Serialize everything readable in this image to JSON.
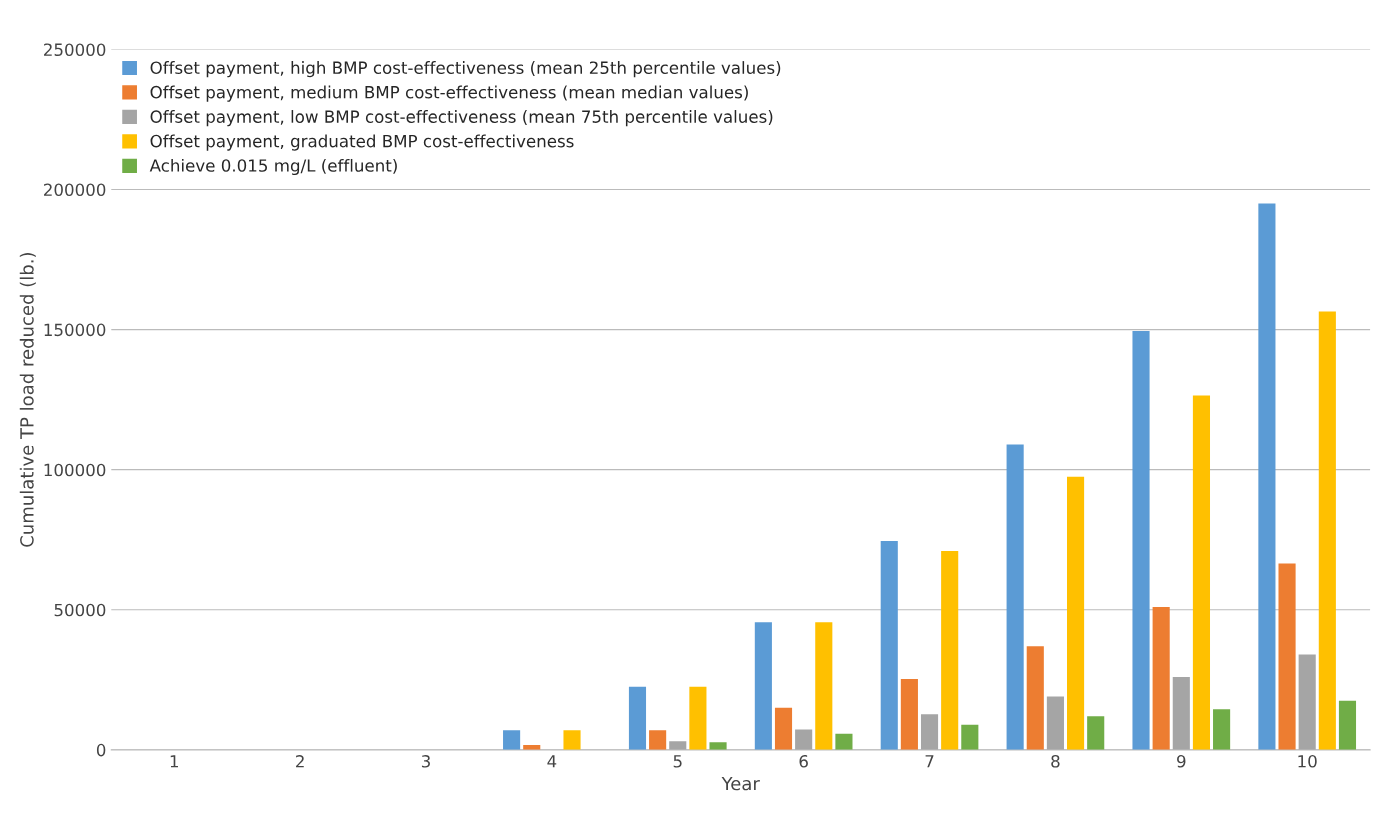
{
  "chart_data": {
    "type": "bar",
    "xlabel": "Year",
    "ylabel": "Cumulative TP load reduced (lb.)",
    "categories": [
      "1",
      "2",
      "3",
      "4",
      "5",
      "6",
      "7",
      "8",
      "9",
      "10"
    ],
    "series": [
      {
        "name": "Offset payment, high BMP cost-effectiveness (mean 25th percentile values)",
        "color": "#5b9bd5",
        "values": [
          0,
          0,
          0,
          7000,
          22500,
          45500,
          74500,
          109000,
          149500,
          195000
        ]
      },
      {
        "name": "Offset payment, medium BMP cost-effectiveness (mean median values)",
        "color": "#ed7d31",
        "values": [
          0,
          0,
          0,
          1700,
          7000,
          15000,
          25300,
          37000,
          51000,
          66500
        ]
      },
      {
        "name": "Offset payment, low BMP cost-effectiveness (mean 75th percentile values)",
        "color": "#a5a5a5",
        "values": [
          0,
          0,
          0,
          null,
          3100,
          7300,
          12700,
          19000,
          26000,
          34000
        ]
      },
      {
        "name": "Offset payment, graduated BMP cost-effectiveness",
        "color": "#ffc000",
        "values": [
          0,
          0,
          0,
          7000,
          22500,
          45500,
          71000,
          97500,
          126500,
          156500
        ]
      },
      {
        "name": "Achieve 0.015 mg/L (effluent)",
        "color": "#70ad47",
        "values": [
          0,
          0,
          0,
          null,
          2700,
          5700,
          9000,
          12000,
          14500,
          17500
        ]
      }
    ],
    "ylim": [
      0,
      250000
    ],
    "yticks": [
      0,
      50000,
      100000,
      150000,
      200000,
      250000
    ],
    "grid": "y",
    "legend": "top left"
  }
}
